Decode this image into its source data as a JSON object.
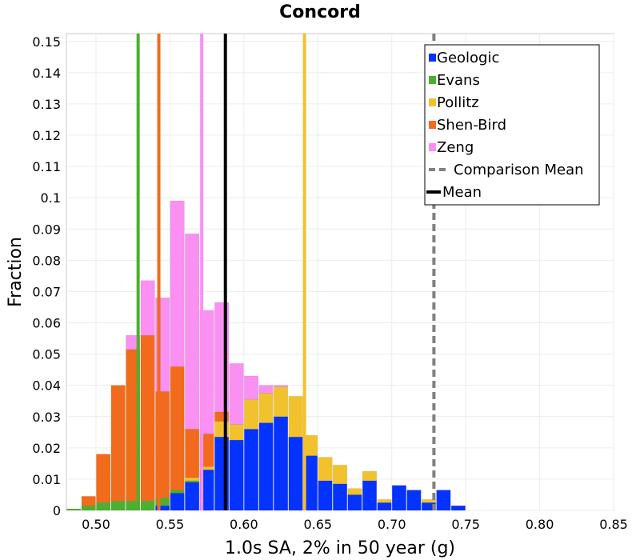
{
  "chart_data": {
    "type": "bar",
    "title": "Concord",
    "xlabel": "1.0s SA, 2% in 50 year (g)",
    "ylabel": "Fraction",
    "xlim": [
      0.48,
      0.85
    ],
    "ylim": [
      0,
      0.1525
    ],
    "x_ticks": [
      "0.50",
      "0.55",
      "0.60",
      "0.65",
      "0.70",
      "0.75",
      "0.80",
      "0.85"
    ],
    "y_ticks": [
      "0",
      "0.01",
      "0.02",
      "0.03",
      "0.04",
      "0.05",
      "0.06",
      "0.07",
      "0.08",
      "0.09",
      "0.1",
      "0.11",
      "0.12",
      "0.13",
      "0.14",
      "0.15"
    ],
    "grid": true,
    "legend_position": "top-right",
    "bin_width": 0.01,
    "stacked": true,
    "series": [
      {
        "name": "Geologic",
        "color": "#0433ff",
        "bins": [
          [
            0.545,
            0.0015
          ],
          [
            0.555,
            0.0055
          ],
          [
            0.565,
            0.009
          ],
          [
            0.575,
            0.013
          ],
          [
            0.585,
            0.0235
          ],
          [
            0.595,
            0.0225
          ],
          [
            0.605,
            0.026
          ],
          [
            0.615,
            0.028
          ],
          [
            0.625,
            0.03
          ],
          [
            0.635,
            0.0235
          ],
          [
            0.645,
            0.0175
          ],
          [
            0.655,
            0.0095
          ],
          [
            0.665,
            0.0085
          ],
          [
            0.675,
            0.005
          ],
          [
            0.685,
            0.0095
          ],
          [
            0.695,
            0.0025
          ],
          [
            0.705,
            0.008
          ],
          [
            0.715,
            0.0065
          ],
          [
            0.725,
            0.0025
          ],
          [
            0.735,
            0.0065
          ],
          [
            0.745,
            0.0015
          ]
        ]
      },
      {
        "name": "Evans",
        "color": "#4daf2f",
        "bins": [
          [
            0.485,
            0.0005
          ],
          [
            0.495,
            0.0015
          ],
          [
            0.505,
            0.0025
          ],
          [
            0.515,
            0.003
          ],
          [
            0.525,
            0.003
          ],
          [
            0.535,
            0.003
          ],
          [
            0.545,
            0.0025
          ],
          [
            0.555,
            0.001
          ],
          [
            0.565,
            0.0005
          ]
        ]
      },
      {
        "name": "Pollitz",
        "color": "#f2c12e",
        "bins": [
          [
            0.565,
            0.001
          ],
          [
            0.575,
            0.001
          ],
          [
            0.585,
            0.005
          ],
          [
            0.595,
            0.005
          ],
          [
            0.605,
            0.0095
          ],
          [
            0.615,
            0.0095
          ],
          [
            0.625,
            0.0095
          ],
          [
            0.635,
            0.013
          ],
          [
            0.645,
            0.0065
          ],
          [
            0.655,
            0.0075
          ],
          [
            0.665,
            0.006
          ],
          [
            0.675,
            0.002
          ],
          [
            0.685,
            0.003
          ],
          [
            0.695,
            0.001
          ],
          [
            0.725,
            0.001
          ]
        ]
      },
      {
        "name": "Shen-Bird",
        "color": "#f26b1d",
        "bins": [
          [
            0.495,
            0.003
          ],
          [
            0.505,
            0.0155
          ],
          [
            0.515,
            0.037
          ],
          [
            0.525,
            0.0485
          ],
          [
            0.535,
            0.053
          ],
          [
            0.545,
            0.034
          ],
          [
            0.555,
            0.0395
          ],
          [
            0.565,
            0.0155
          ],
          [
            0.575,
            0.0105
          ],
          [
            0.585,
            0.003
          ]
        ]
      },
      {
        "name": "Zeng",
        "color": "#f990f2",
        "bins": [
          [
            0.525,
            0.0045
          ],
          [
            0.535,
            0.0175
          ],
          [
            0.545,
            0.03
          ],
          [
            0.555,
            0.053
          ],
          [
            0.565,
            0.0625
          ],
          [
            0.575,
            0.0395
          ],
          [
            0.585,
            0.035
          ],
          [
            0.595,
            0.0195
          ],
          [
            0.605,
            0.0075
          ],
          [
            0.615,
            0.0025
          ],
          [
            0.625,
            0.0005
          ]
        ]
      }
    ],
    "vertical_lines": [
      {
        "series": "Evans",
        "x": 0.5285,
        "color": "#4daf2f",
        "style": "solid"
      },
      {
        "series": "Shen-Bird",
        "x": 0.5425,
        "color": "#f26b1d",
        "style": "solid"
      },
      {
        "series": "Zeng",
        "x": 0.5715,
        "color": "#f990f2",
        "style": "solid"
      },
      {
        "series": "Pollitz",
        "x": 0.641,
        "color": "#f2c12e",
        "style": "solid"
      },
      {
        "series": "Mean",
        "x": 0.5875,
        "color": "#000000",
        "style": "solid"
      },
      {
        "series": "Comparison Mean",
        "x": 0.7285,
        "color": "#808080",
        "style": "dashed"
      }
    ],
    "legend": [
      {
        "name": "Geologic",
        "color": "#0433ff",
        "marker": "square"
      },
      {
        "name": "Evans",
        "color": "#4daf2f",
        "marker": "square"
      },
      {
        "name": "Pollitz",
        "color": "#f2c12e",
        "marker": "square"
      },
      {
        "name": "Shen-Bird",
        "color": "#f26b1d",
        "marker": "square"
      },
      {
        "name": "Zeng",
        "color": "#f990f2",
        "marker": "square"
      },
      {
        "name": "Comparison Mean",
        "color": "#808080",
        "marker": "dashed-line"
      },
      {
        "name": "Mean",
        "color": "#000000",
        "marker": "solid-line"
      }
    ]
  }
}
